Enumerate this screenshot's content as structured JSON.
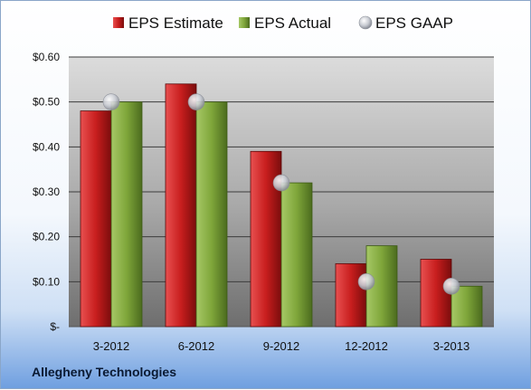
{
  "company_label": "Allegheny Technologies",
  "colors": {
    "estimate": "#c81e1e",
    "actual": "#7fa63a",
    "gaap": "#b9bcc4"
  },
  "chart_data": {
    "type": "bar",
    "categories": [
      "3-2012",
      "6-2012",
      "9-2012",
      "12-2012",
      "3-2013"
    ],
    "series": [
      {
        "name": "EPS Estimate",
        "kind": "bar",
        "color_key": "estimate",
        "values": [
          0.48,
          0.54,
          0.39,
          0.14,
          0.15
        ]
      },
      {
        "name": "EPS Actual",
        "kind": "bar",
        "color_key": "actual",
        "values": [
          0.5,
          0.5,
          0.32,
          0.18,
          0.09
        ]
      },
      {
        "name": "EPS GAAP",
        "kind": "marker",
        "color_key": "gaap",
        "values": [
          0.5,
          0.5,
          0.32,
          0.1,
          0.09
        ]
      }
    ],
    "ylim": [
      0,
      0.6
    ],
    "yticks": [
      0,
      0.1,
      0.2,
      0.3,
      0.4,
      0.5,
      0.6
    ],
    "ytick_labels": [
      "$-",
      "$0.10",
      "$0.20",
      "$0.30",
      "$0.40",
      "$0.50",
      "$0.60"
    ],
    "grid": true,
    "legend_position": "top"
  }
}
